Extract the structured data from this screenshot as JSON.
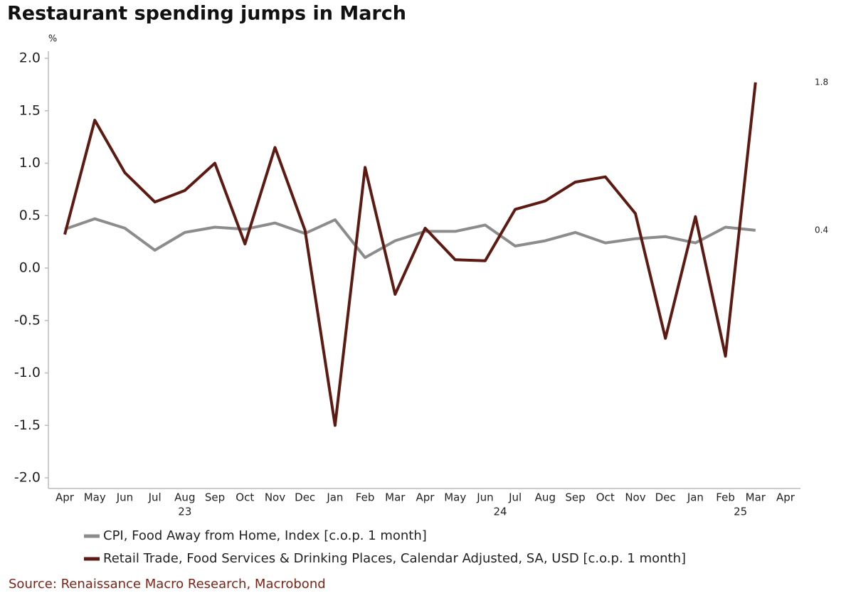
{
  "chart_data": {
    "type": "line",
    "title": "Restaurant spending jumps in March",
    "y_unit": "%",
    "source": "Source: Renaissance Macro Research, Macrobond",
    "categories": [
      "Apr",
      "May",
      "Jun",
      "Jul",
      "Aug",
      "Sep",
      "Oct",
      "Nov",
      "Dec",
      "Jan",
      "Feb",
      "Mar",
      "Apr",
      "May",
      "Jun",
      "Jul",
      "Aug",
      "Sep",
      "Oct",
      "Nov",
      "Dec",
      "Jan",
      "Feb",
      "Mar",
      "Apr"
    ],
    "year_labels": [
      "23",
      "24",
      "25"
    ],
    "series": [
      {
        "name": "CPI, Food Away from Home, Index [c.o.p. 1 month]",
        "color": "#8c8c8c",
        "values": [
          0.37,
          0.47,
          0.38,
          0.17,
          0.34,
          0.39,
          0.37,
          0.43,
          0.33,
          0.46,
          0.1,
          0.26,
          0.35,
          0.35,
          0.41,
          0.21,
          0.26,
          0.34,
          0.24,
          0.28,
          0.3,
          0.24,
          0.39,
          0.36,
          null
        ],
        "end_label": "0.4"
      },
      {
        "name": "Retail Trade, Food Services & Drinking Places, Calendar Adjusted, SA, USD [c.o.p. 1 month]",
        "color": "#5c1a12",
        "values": [
          0.32,
          1.41,
          0.91,
          0.63,
          0.74,
          1.0,
          0.23,
          1.15,
          0.36,
          -1.5,
          0.96,
          -0.25,
          0.38,
          0.08,
          0.07,
          0.56,
          0.64,
          0.82,
          0.87,
          0.52,
          -0.67,
          0.49,
          -0.84,
          1.77,
          null
        ],
        "end_label": "1.8"
      }
    ],
    "ylim": [
      -2.1,
      2.1
    ],
    "yticks": [
      {
        "value": 2,
        "label": "2.0"
      },
      {
        "value": 1.5,
        "label": "1.5"
      },
      {
        "value": 1,
        "label": "1.0"
      },
      {
        "value": 0.5,
        "label": "0.5"
      },
      {
        "value": 0,
        "label": "0.0"
      },
      {
        "value": -0.5,
        "label": "-0.5"
      },
      {
        "value": -1,
        "label": "-1.0"
      },
      {
        "value": -1.5,
        "label": "-1.5"
      },
      {
        "value": -2,
        "label": "-2.0"
      }
    ]
  }
}
